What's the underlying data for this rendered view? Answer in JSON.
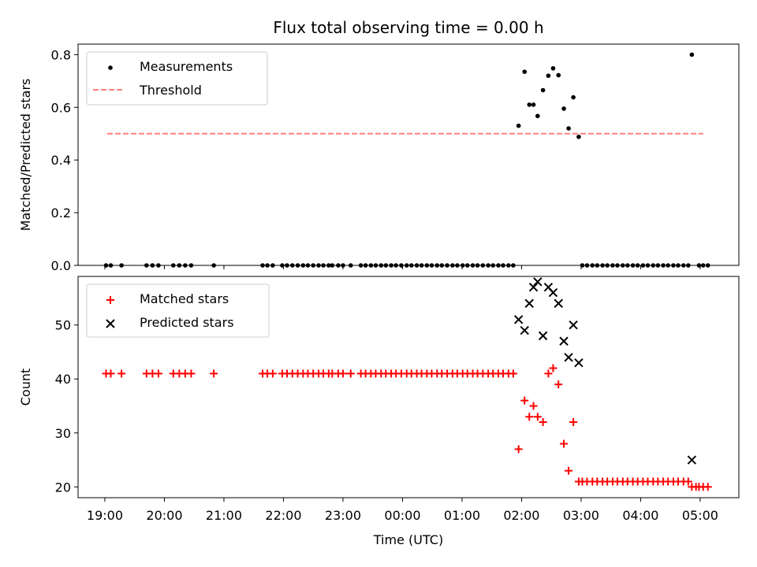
{
  "figure": {
    "title": "Flux total observing time = 0.00 h",
    "xlabel": "Time (UTC)"
  },
  "colors": {
    "measurements": "#000000",
    "threshold": "#ff7f7f",
    "matched": "#ff0000",
    "predicted": "#000000"
  },
  "chart_data": [
    {
      "type": "scatter",
      "panel": "top",
      "title": "Flux total observing time = 0.00 h",
      "xlabel": "",
      "ylabel": "Matched/Predicted stars",
      "xlim": [
        18.55,
        29.65
      ],
      "ylim": [
        0,
        0.84
      ],
      "yticks": [
        0.0,
        0.2,
        0.4,
        0.6,
        0.8
      ],
      "ytick_labels": [
        "0.0",
        "0.2",
        "0.4",
        "0.6",
        "0.8"
      ],
      "legend": {
        "position": "top-left",
        "entries": [
          "Measurements",
          "Threshold"
        ]
      },
      "series": [
        {
          "name": "Measurements",
          "marker": "dot",
          "points": [
            [
              19.02,
              0
            ],
            [
              19.1,
              0
            ],
            [
              19.28,
              0
            ],
            [
              19.7,
              0
            ],
            [
              19.8,
              0
            ],
            [
              19.9,
              0
            ],
            [
              20.15,
              0
            ],
            [
              20.25,
              0
            ],
            [
              20.35,
              0
            ],
            [
              20.45,
              0
            ],
            [
              20.83,
              0
            ],
            [
              21.65,
              0
            ],
            [
              21.73,
              0
            ],
            [
              21.82,
              0
            ],
            [
              21.98,
              0
            ],
            [
              22.06,
              0
            ],
            [
              22.15,
              0
            ],
            [
              22.24,
              0
            ],
            [
              22.33,
              0
            ],
            [
              22.41,
              0
            ],
            [
              22.5,
              0
            ],
            [
              22.59,
              0
            ],
            [
              22.67,
              0
            ],
            [
              22.76,
              0
            ],
            [
              22.82,
              0
            ],
            [
              22.92,
              0
            ],
            [
              23.0,
              0
            ],
            [
              23.13,
              0
            ],
            [
              23.3,
              0
            ],
            [
              23.38,
              0
            ],
            [
              23.47,
              0
            ],
            [
              23.55,
              0
            ],
            [
              23.64,
              0
            ],
            [
              23.72,
              0
            ],
            [
              23.81,
              0
            ],
            [
              23.89,
              0
            ],
            [
              23.98,
              0
            ],
            [
              24.07,
              0
            ],
            [
              24.15,
              0
            ],
            [
              24.24,
              0
            ],
            [
              24.32,
              0
            ],
            [
              24.41,
              0
            ],
            [
              24.49,
              0
            ],
            [
              24.58,
              0
            ],
            [
              24.66,
              0
            ],
            [
              24.75,
              0
            ],
            [
              24.84,
              0
            ],
            [
              24.92,
              0
            ],
            [
              25.01,
              0
            ],
            [
              25.09,
              0
            ],
            [
              25.18,
              0
            ],
            [
              25.26,
              0
            ],
            [
              25.35,
              0
            ],
            [
              25.44,
              0
            ],
            [
              25.52,
              0
            ],
            [
              25.61,
              0
            ],
            [
              25.69,
              0
            ],
            [
              25.78,
              0
            ],
            [
              25.86,
              0
            ],
            [
              25.95,
              0.53
            ],
            [
              26.05,
              0.735
            ],
            [
              26.13,
              0.61
            ],
            [
              26.2,
              0.61
            ],
            [
              26.27,
              0.567
            ],
            [
              26.36,
              0.665
            ],
            [
              26.45,
              0.72
            ],
            [
              26.53,
              0.748
            ],
            [
              26.62,
              0.722
            ],
            [
              26.71,
              0.595
            ],
            [
              26.79,
              0.52
            ],
            [
              26.87,
              0.638
            ],
            [
              26.96,
              0.488
            ],
            [
              27.02,
              0
            ],
            [
              27.1,
              0
            ],
            [
              27.19,
              0
            ],
            [
              27.27,
              0
            ],
            [
              27.36,
              0
            ],
            [
              27.44,
              0
            ],
            [
              27.53,
              0
            ],
            [
              27.61,
              0
            ],
            [
              27.7,
              0
            ],
            [
              27.78,
              0
            ],
            [
              27.87,
              0
            ],
            [
              27.95,
              0
            ],
            [
              28.04,
              0
            ],
            [
              28.12,
              0
            ],
            [
              28.21,
              0
            ],
            [
              28.29,
              0
            ],
            [
              28.38,
              0
            ],
            [
              28.46,
              0
            ],
            [
              28.55,
              0
            ],
            [
              28.63,
              0
            ],
            [
              28.72,
              0
            ],
            [
              28.8,
              0
            ],
            [
              28.86,
              0.8
            ],
            [
              28.98,
              0
            ],
            [
              29.05,
              0
            ],
            [
              29.13,
              0
            ]
          ]
        },
        {
          "name": "Threshold",
          "style": "dashed",
          "points": [
            [
              19.04,
              0.5
            ],
            [
              29.05,
              0.5
            ]
          ]
        }
      ]
    },
    {
      "type": "scatter",
      "panel": "bottom",
      "title": "",
      "xlabel": "Time (UTC)",
      "ylabel": "Count",
      "xlim": [
        18.55,
        29.65
      ],
      "ylim": [
        18,
        59
      ],
      "x_ticks": [
        19,
        20,
        21,
        22,
        23,
        24,
        25,
        26,
        27,
        28,
        29
      ],
      "x_tick_labels": [
        "19:00",
        "20:00",
        "21:00",
        "22:00",
        "23:00",
        "00:00",
        "01:00",
        "02:00",
        "03:00",
        "04:00",
        "05:00"
      ],
      "yticks": [
        20,
        30,
        40,
        50
      ],
      "ytick_labels": [
        "20",
        "30",
        "40",
        "50"
      ],
      "legend": {
        "position": "top-left",
        "entries": [
          "Matched stars",
          "Predicted stars"
        ]
      },
      "series": [
        {
          "name": "Matched stars",
          "marker": "plus",
          "points": [
            [
              19.02,
              41
            ],
            [
              19.1,
              41
            ],
            [
              19.28,
              41
            ],
            [
              19.7,
              41
            ],
            [
              19.8,
              41
            ],
            [
              19.9,
              41
            ],
            [
              20.15,
              41
            ],
            [
              20.25,
              41
            ],
            [
              20.35,
              41
            ],
            [
              20.45,
              41
            ],
            [
              20.83,
              41
            ],
            [
              21.65,
              41
            ],
            [
              21.73,
              41
            ],
            [
              21.82,
              41
            ],
            [
              21.98,
              41
            ],
            [
              22.06,
              41
            ],
            [
              22.15,
              41
            ],
            [
              22.24,
              41
            ],
            [
              22.33,
              41
            ],
            [
              22.41,
              41
            ],
            [
              22.5,
              41
            ],
            [
              22.59,
              41
            ],
            [
              22.67,
              41
            ],
            [
              22.76,
              41
            ],
            [
              22.82,
              41
            ],
            [
              22.92,
              41
            ],
            [
              23.0,
              41
            ],
            [
              23.13,
              41
            ],
            [
              23.3,
              41
            ],
            [
              23.38,
              41
            ],
            [
              23.47,
              41
            ],
            [
              23.55,
              41
            ],
            [
              23.64,
              41
            ],
            [
              23.72,
              41
            ],
            [
              23.81,
              41
            ],
            [
              23.89,
              41
            ],
            [
              23.98,
              41
            ],
            [
              24.07,
              41
            ],
            [
              24.15,
              41
            ],
            [
              24.24,
              41
            ],
            [
              24.32,
              41
            ],
            [
              24.41,
              41
            ],
            [
              24.49,
              41
            ],
            [
              24.58,
              41
            ],
            [
              24.66,
              41
            ],
            [
              24.75,
              41
            ],
            [
              24.84,
              41
            ],
            [
              24.92,
              41
            ],
            [
              25.01,
              41
            ],
            [
              25.09,
              41
            ],
            [
              25.18,
              41
            ],
            [
              25.26,
              41
            ],
            [
              25.35,
              41
            ],
            [
              25.44,
              41
            ],
            [
              25.52,
              41
            ],
            [
              25.61,
              41
            ],
            [
              25.69,
              41
            ],
            [
              25.78,
              41
            ],
            [
              25.86,
              41
            ],
            [
              25.95,
              27
            ],
            [
              26.05,
              36
            ],
            [
              26.13,
              33
            ],
            [
              26.2,
              35
            ],
            [
              26.27,
              33
            ],
            [
              26.36,
              32
            ],
            [
              26.45,
              41
            ],
            [
              26.53,
              42
            ],
            [
              26.62,
              39
            ],
            [
              26.71,
              28
            ],
            [
              26.79,
              23
            ],
            [
              26.87,
              32
            ],
            [
              26.96,
              21
            ],
            [
              27.02,
              21
            ],
            [
              27.1,
              21
            ],
            [
              27.19,
              21
            ],
            [
              27.27,
              21
            ],
            [
              27.36,
              21
            ],
            [
              27.44,
              21
            ],
            [
              27.53,
              21
            ],
            [
              27.61,
              21
            ],
            [
              27.7,
              21
            ],
            [
              27.78,
              21
            ],
            [
              27.87,
              21
            ],
            [
              27.95,
              21
            ],
            [
              28.04,
              21
            ],
            [
              28.12,
              21
            ],
            [
              28.21,
              21
            ],
            [
              28.29,
              21
            ],
            [
              28.38,
              21
            ],
            [
              28.46,
              21
            ],
            [
              28.55,
              21
            ],
            [
              28.63,
              21
            ],
            [
              28.72,
              21
            ],
            [
              28.8,
              21
            ],
            [
              28.86,
              20
            ],
            [
              28.93,
              20
            ],
            [
              28.98,
              20
            ],
            [
              29.05,
              20
            ],
            [
              29.13,
              20
            ]
          ]
        },
        {
          "name": "Predicted stars",
          "marker": "x",
          "points": [
            [
              25.95,
              51
            ],
            [
              26.05,
              49
            ],
            [
              26.13,
              54
            ],
            [
              26.2,
              57
            ],
            [
              26.27,
              58
            ],
            [
              26.36,
              48
            ],
            [
              26.45,
              57
            ],
            [
              26.53,
              56
            ],
            [
              26.62,
              54
            ],
            [
              26.71,
              47
            ],
            [
              26.79,
              44
            ],
            [
              26.87,
              50
            ],
            [
              26.96,
              43
            ],
            [
              28.86,
              25
            ]
          ]
        }
      ]
    }
  ]
}
